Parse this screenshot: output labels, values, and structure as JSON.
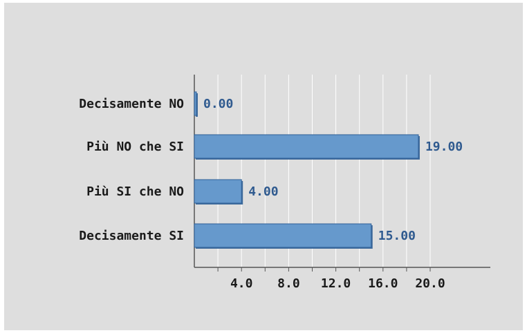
{
  "chart_data": {
    "type": "bar",
    "orientation": "horizontal",
    "categories": [
      "Decisamente NO",
      "Più NO che SI",
      "Più SI che NO",
      "Decisamente SI"
    ],
    "values": [
      0.0,
      19.0,
      4.0,
      15.0
    ],
    "value_labels": [
      "0.00",
      "19.00",
      "4.00",
      "15.00"
    ],
    "x_ticks": [
      4.0,
      8.0,
      12.0,
      16.0,
      20.0
    ],
    "x_tick_labels": [
      "4.0",
      "8.0",
      "12.0",
      "16.0",
      "20.0"
    ],
    "xlim": [
      0,
      25
    ],
    "grid": "vertical",
    "colors": {
      "bar_fill": "#6699cc",
      "bar_edge": "#2f5f96",
      "data_label": "#2f5a8f",
      "grid": "#ffffff",
      "axis": "#555555",
      "background": "#dedede"
    }
  }
}
